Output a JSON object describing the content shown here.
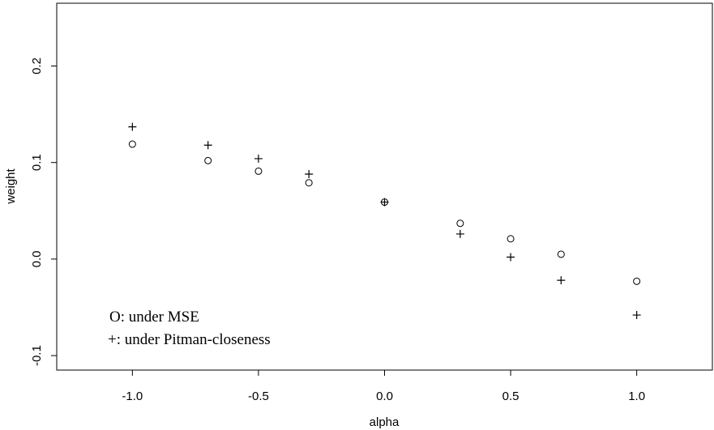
{
  "chart_data": {
    "type": "scatter",
    "xlabel": "alpha",
    "ylabel": "weight",
    "xlim": [
      -1.3,
      1.3
    ],
    "ylim": [
      -0.115,
      0.265
    ],
    "xticks": [
      -1.0,
      -0.5,
      0.0,
      0.5,
      1.0
    ],
    "xtick_labels": [
      "-1.0",
      "-0.5",
      "0.0",
      "0.5",
      "1.0"
    ],
    "yticks": [
      -0.1,
      0.0,
      0.1,
      0.2
    ],
    "ytick_labels": [
      "-0.1",
      "0.0",
      "0.1",
      "0.2"
    ],
    "grid": false,
    "legend_position": "bottom-left",
    "legend": [
      "O: under MSE",
      "+: under Pitman-closeness"
    ],
    "series": [
      {
        "marker": "circle",
        "x": [
          -1.0,
          -0.7,
          -0.5,
          -0.3,
          0.0,
          0.3,
          0.5,
          0.7,
          1.0
        ],
        "y": [
          0.119,
          0.102,
          0.091,
          0.079,
          0.059,
          0.037,
          0.021,
          0.005,
          -0.023
        ]
      },
      {
        "marker": "plus",
        "x": [
          -1.0,
          -0.7,
          -0.5,
          -0.3,
          0.0,
          0.3,
          0.5,
          0.7,
          1.0
        ],
        "y": [
          0.137,
          0.118,
          0.104,
          0.088,
          0.059,
          0.026,
          0.002,
          -0.022,
          -0.058
        ]
      }
    ]
  }
}
